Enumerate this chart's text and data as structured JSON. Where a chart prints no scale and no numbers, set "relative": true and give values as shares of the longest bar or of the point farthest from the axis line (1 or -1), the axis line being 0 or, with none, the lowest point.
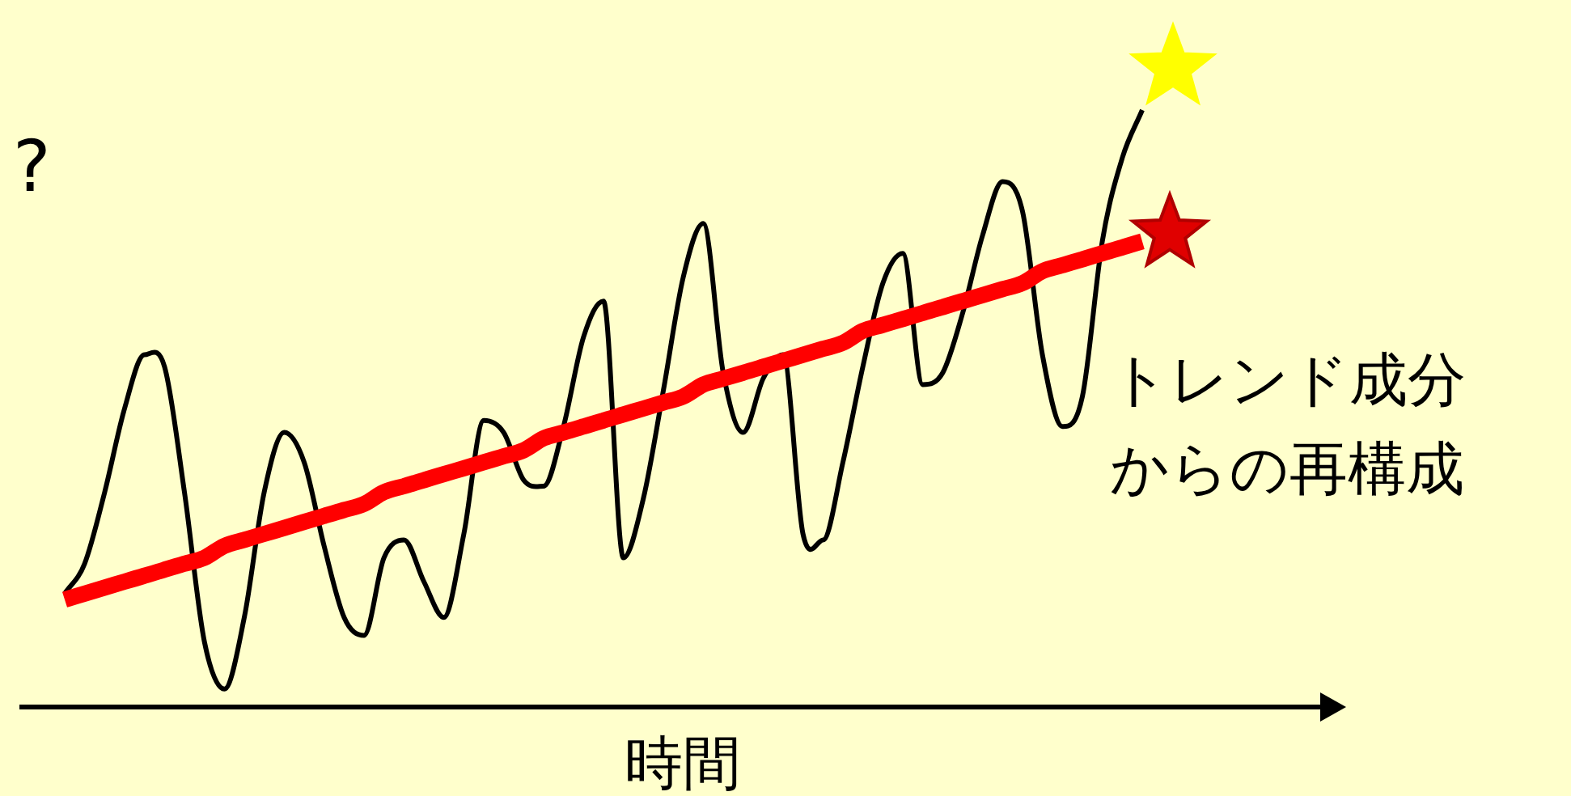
{
  "chart_data": {
    "type": "line",
    "relative": true,
    "xlabel": "時間",
    "annotations": [
      "?",
      "トレンド成分",
      "からの再構成"
    ],
    "categories": [
      null,
      null,
      null,
      null,
      null,
      null,
      null,
      null,
      null,
      null,
      null,
      null,
      null,
      null,
      null,
      null,
      null,
      null,
      null,
      null,
      null,
      null,
      null,
      null,
      null,
      null,
      null,
      null,
      null,
      null,
      null,
      null,
      null,
      null,
      null,
      null,
      null,
      null,
      null,
      null,
      null,
      null,
      null,
      null,
      null,
      null,
      null,
      null,
      null,
      null,
      null,
      null,
      null,
      null,
      null
    ],
    "series": [
      {
        "color": "#000000",
        "values": [
          0.19,
          0.24,
          0.36,
          0.5,
          0.59,
          0.57,
          0.36,
          0.11,
          0.03,
          0.15,
          0.36,
          0.46,
          0.41,
          0.27,
          0.15,
          0.12,
          0.25,
          0.28,
          0.21,
          0.15,
          0.29,
          0.48,
          0.46,
          0.38,
          0.37,
          0.47,
          0.62,
          0.68,
          0.25,
          0.35,
          0.53,
          0.72,
          0.81,
          0.56,
          0.46,
          0.55,
          0.59,
          0.29,
          0.28,
          0.41,
          0.57,
          0.71,
          0.76,
          0.54,
          0.56,
          0.66,
          0.79,
          0.88,
          0.83,
          0.59,
          0.47,
          0.52,
          0.78,
          0.92,
          1
        ]
      },
      {
        "color": "#ff0000",
        "values": [
          0.18,
          0.19,
          0.2,
          0.21,
          0.22,
          0.23,
          0.24,
          0.25,
          0.27,
          0.28,
          0.29,
          0.3,
          0.31,
          0.32,
          0.33,
          0.34,
          0.36,
          0.37,
          0.38,
          0.39,
          0.4,
          0.41,
          0.42,
          0.43,
          0.45,
          0.46,
          0.47,
          0.48,
          0.49,
          0.5,
          0.51,
          0.52,
          0.54,
          0.55,
          0.56,
          0.57,
          0.58,
          0.59,
          0.6,
          0.61,
          0.63,
          0.64,
          0.65,
          0.66,
          0.67,
          0.68,
          0.69,
          0.7,
          0.71,
          0.73,
          0.74,
          0.75,
          0.76,
          0.77,
          0.78
        ]
      }
    ]
  }
}
